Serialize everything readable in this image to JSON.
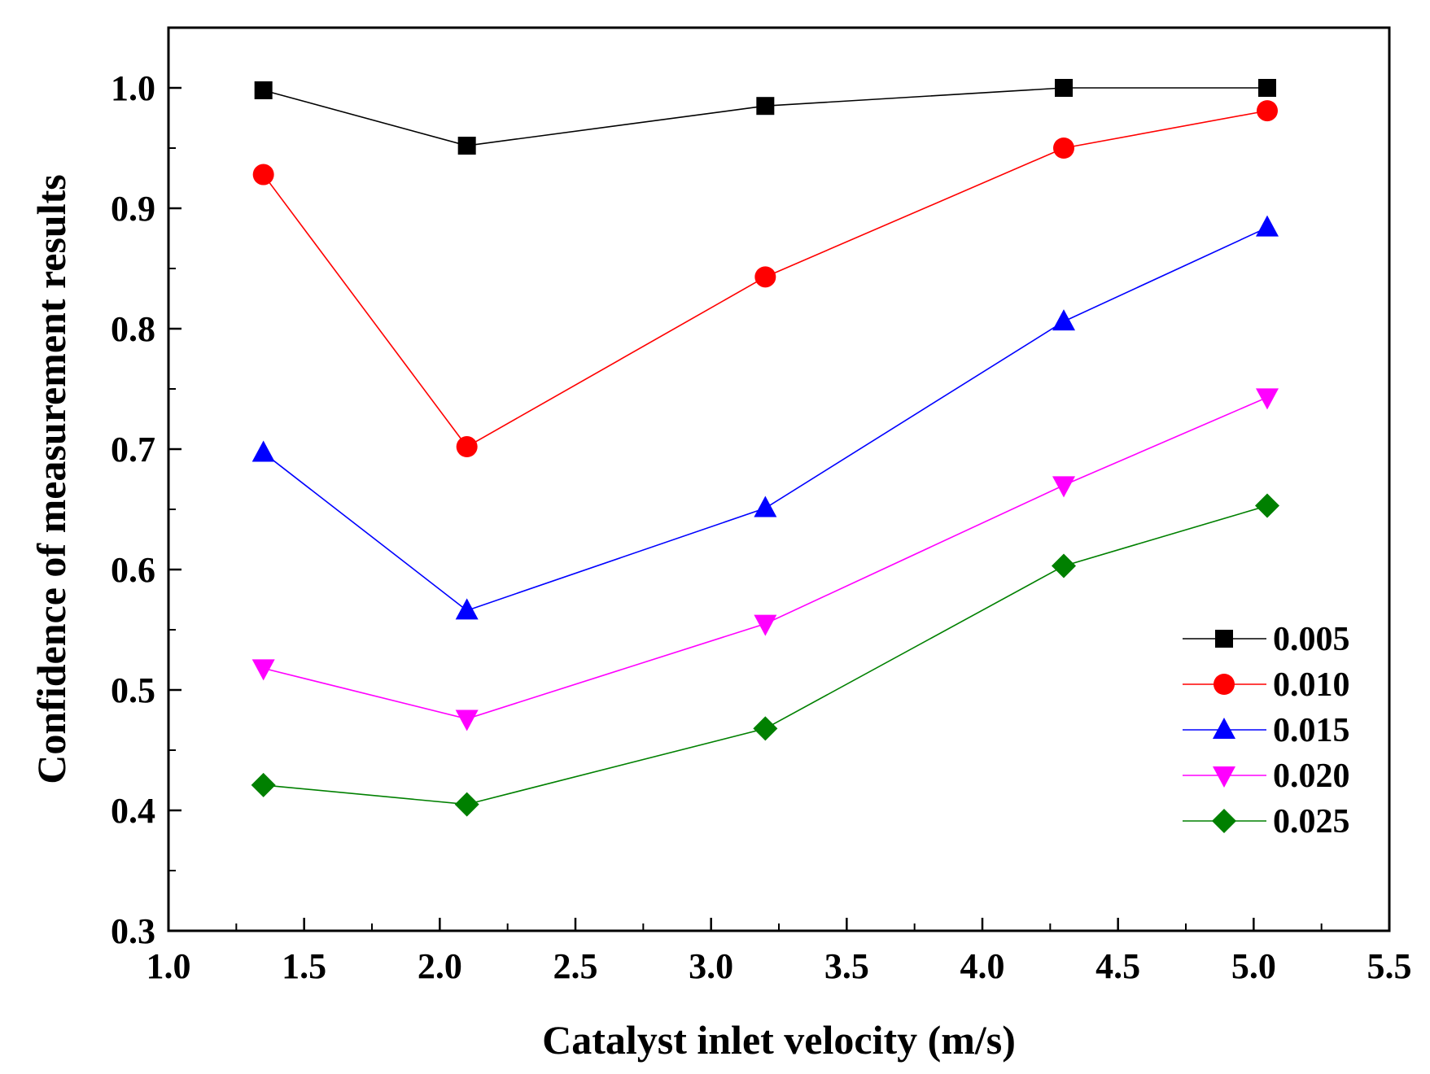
{
  "chart_data": {
    "type": "line",
    "title": "",
    "xlabel": "Catalyst inlet velocity (m/s)",
    "ylabel": "Confidence of measurement results",
    "xlim": [
      1.0,
      5.5
    ],
    "ylim": [
      0.3,
      1.05
    ],
    "x_ticks": [
      "1.0",
      "1.5",
      "2.0",
      "2.5",
      "3.0",
      "3.5",
      "4.0",
      "4.5",
      "5.0",
      "5.5"
    ],
    "y_ticks": [
      "0.3",
      "0.4",
      "0.5",
      "0.6",
      "0.7",
      "0.8",
      "0.9",
      "1.0"
    ],
    "grid": false,
    "legend_position": "center-right",
    "x": [
      1.35,
      2.1,
      3.2,
      4.3,
      5.05
    ],
    "series": [
      {
        "name": "0.005",
        "color": "#000000",
        "marker": "square",
        "values": [
          0.998,
          0.952,
          0.985,
          1.0,
          1.0
        ]
      },
      {
        "name": "0.010",
        "color": "#ff0000",
        "marker": "circle",
        "values": [
          0.928,
          0.702,
          0.843,
          0.95,
          0.981
        ]
      },
      {
        "name": "0.015",
        "color": "#0000ff",
        "marker": "triangle-up",
        "values": [
          0.697,
          0.566,
          0.651,
          0.806,
          0.884
        ]
      },
      {
        "name": "0.020",
        "color": "#ff00ff",
        "marker": "triangle-down",
        "values": [
          0.518,
          0.476,
          0.555,
          0.67,
          0.743
        ]
      },
      {
        "name": "0.025",
        "color": "#008000",
        "marker": "diamond",
        "values": [
          0.421,
          0.405,
          0.468,
          0.603,
          0.653
        ]
      }
    ]
  }
}
